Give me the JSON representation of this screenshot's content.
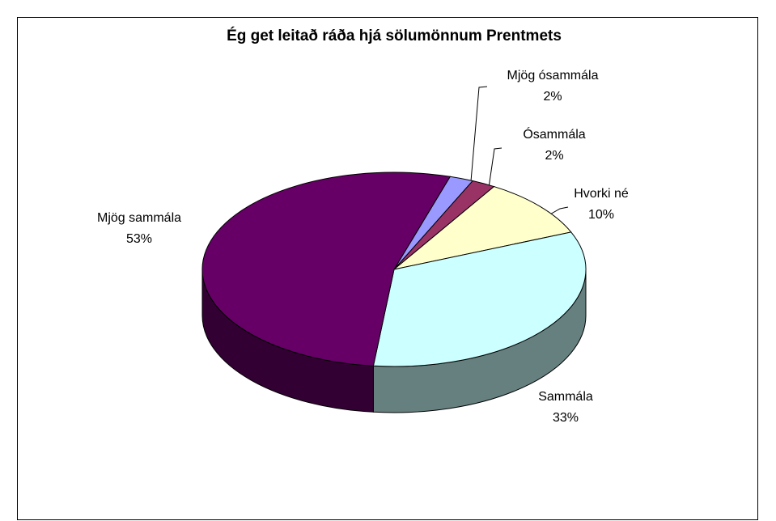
{
  "chart_data": {
    "type": "pie",
    "title": "Ég get leitað ráða hjá sölumönnum Prentmets",
    "categories": [
      "Mjög ósammála",
      "Ósammála",
      "Hvorki né",
      "Sammála",
      "Mjög sammála"
    ],
    "values": [
      2,
      2,
      10,
      33,
      53
    ],
    "value_labels": [
      "2%",
      "2%",
      "10%",
      "33%",
      "53%"
    ],
    "colors": [
      "#9999ff",
      "#993366",
      "#ffffcc",
      "#ccffff",
      "#660066"
    ]
  }
}
